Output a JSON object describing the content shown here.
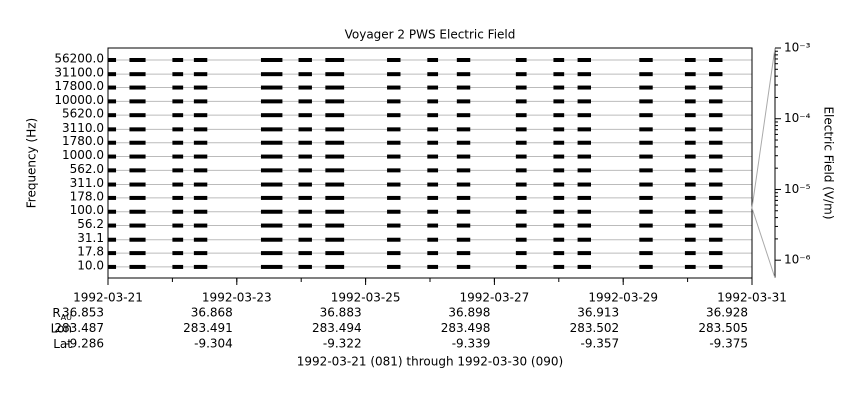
{
  "chart_data": {
    "type": "spectrogram",
    "title": "Voyager 2 PWS Electric Field",
    "ylabel": "Frequency (Hz)",
    "y2label": "Electric Field (V/m)",
    "footer": "1992-03-21 (081) through 1992-03-30 (090)",
    "xlim": [
      "1992-03-21",
      "1992-03-31"
    ],
    "xticks": [
      "1992-03-21",
      "1992-03-23",
      "1992-03-25",
      "1992-03-27",
      "1992-03-29",
      "1992-03-31"
    ],
    "ylim": [
      6.3,
      92700
    ],
    "log_y": true,
    "yticks": [
      {
        "value": 10,
        "label": "10.0"
      },
      {
        "value": 17.8,
        "label": "17.8"
      },
      {
        "value": 31.1,
        "label": "31.1"
      },
      {
        "value": 56.2,
        "label": "56.2"
      },
      {
        "value": 100,
        "label": "100.0"
      },
      {
        "value": 178,
        "label": "178.0"
      },
      {
        "value": 311,
        "label": "311.0"
      },
      {
        "value": 562,
        "label": "562.0"
      },
      {
        "value": 1000,
        "label": "1000.0"
      },
      {
        "value": 1780,
        "label": "1780.0"
      },
      {
        "value": 3110,
        "label": "3110.0"
      },
      {
        "value": 5620,
        "label": "5620.0"
      },
      {
        "value": 10000,
        "label": "10000.0"
      },
      {
        "value": 17800,
        "label": "17800.0"
      },
      {
        "value": 31100,
        "label": "31100.0"
      },
      {
        "value": 56200,
        "label": "56200.0"
      }
    ],
    "y2lim": [
      5.6e-07,
      0.001
    ],
    "y2ticks": [
      {
        "value": 1e-06,
        "label": "10⁻⁶"
      },
      {
        "value": 1e-05,
        "label": "10⁻⁵"
      },
      {
        "value": 0.0001,
        "label": "10⁻⁴"
      },
      {
        "value": 0.001,
        "label": "10⁻³"
      }
    ],
    "grid": true,
    "color": "#000000",
    "passes": [
      {
        "start": "1992-03-21T00:00",
        "end": "1992-03-21T03:00"
      },
      {
        "start": "1992-03-21T08:00",
        "end": "1992-03-21T14:00"
      },
      {
        "start": "1992-03-22T00:00",
        "end": "1992-03-22T04:00"
      },
      {
        "start": "1992-03-22T08:00",
        "end": "1992-03-22T13:00"
      },
      {
        "start": "1992-03-23T09:00",
        "end": "1992-03-23T17:00"
      },
      {
        "start": "1992-03-23T23:00",
        "end": "1992-03-24T04:00"
      },
      {
        "start": "1992-03-24T09:00",
        "end": "1992-03-24T16:00"
      },
      {
        "start": "1992-03-25T08:00",
        "end": "1992-03-25T13:00"
      },
      {
        "start": "1992-03-25T23:00",
        "end": "1992-03-26T03:00"
      },
      {
        "start": "1992-03-26T10:00",
        "end": "1992-03-26T15:00"
      },
      {
        "start": "1992-03-27T08:00",
        "end": "1992-03-27T12:00"
      },
      {
        "start": "1992-03-27T22:00",
        "end": "1992-03-28T02:00"
      },
      {
        "start": "1992-03-28T07:00",
        "end": "1992-03-28T12:00"
      },
      {
        "start": "1992-03-29T06:00",
        "end": "1992-03-29T11:00"
      },
      {
        "start": "1992-03-29T23:00",
        "end": "1992-03-30T03:00"
      },
      {
        "start": "1992-03-30T08:00",
        "end": "1992-03-30T13:00"
      }
    ],
    "ephemeris": [
      {
        "label": "R",
        "sub": "AU",
        "values": [
          36.853,
          36.868,
          36.883,
          36.898,
          36.913,
          36.928
        ]
      },
      {
        "label": "Lon",
        "values": [
          283.487,
          283.491,
          283.494,
          283.498,
          283.502,
          283.505
        ]
      },
      {
        "label": "Lat",
        "values": [
          -9.286,
          -9.304,
          -9.322,
          -9.339,
          -9.357,
          -9.375
        ]
      }
    ]
  }
}
